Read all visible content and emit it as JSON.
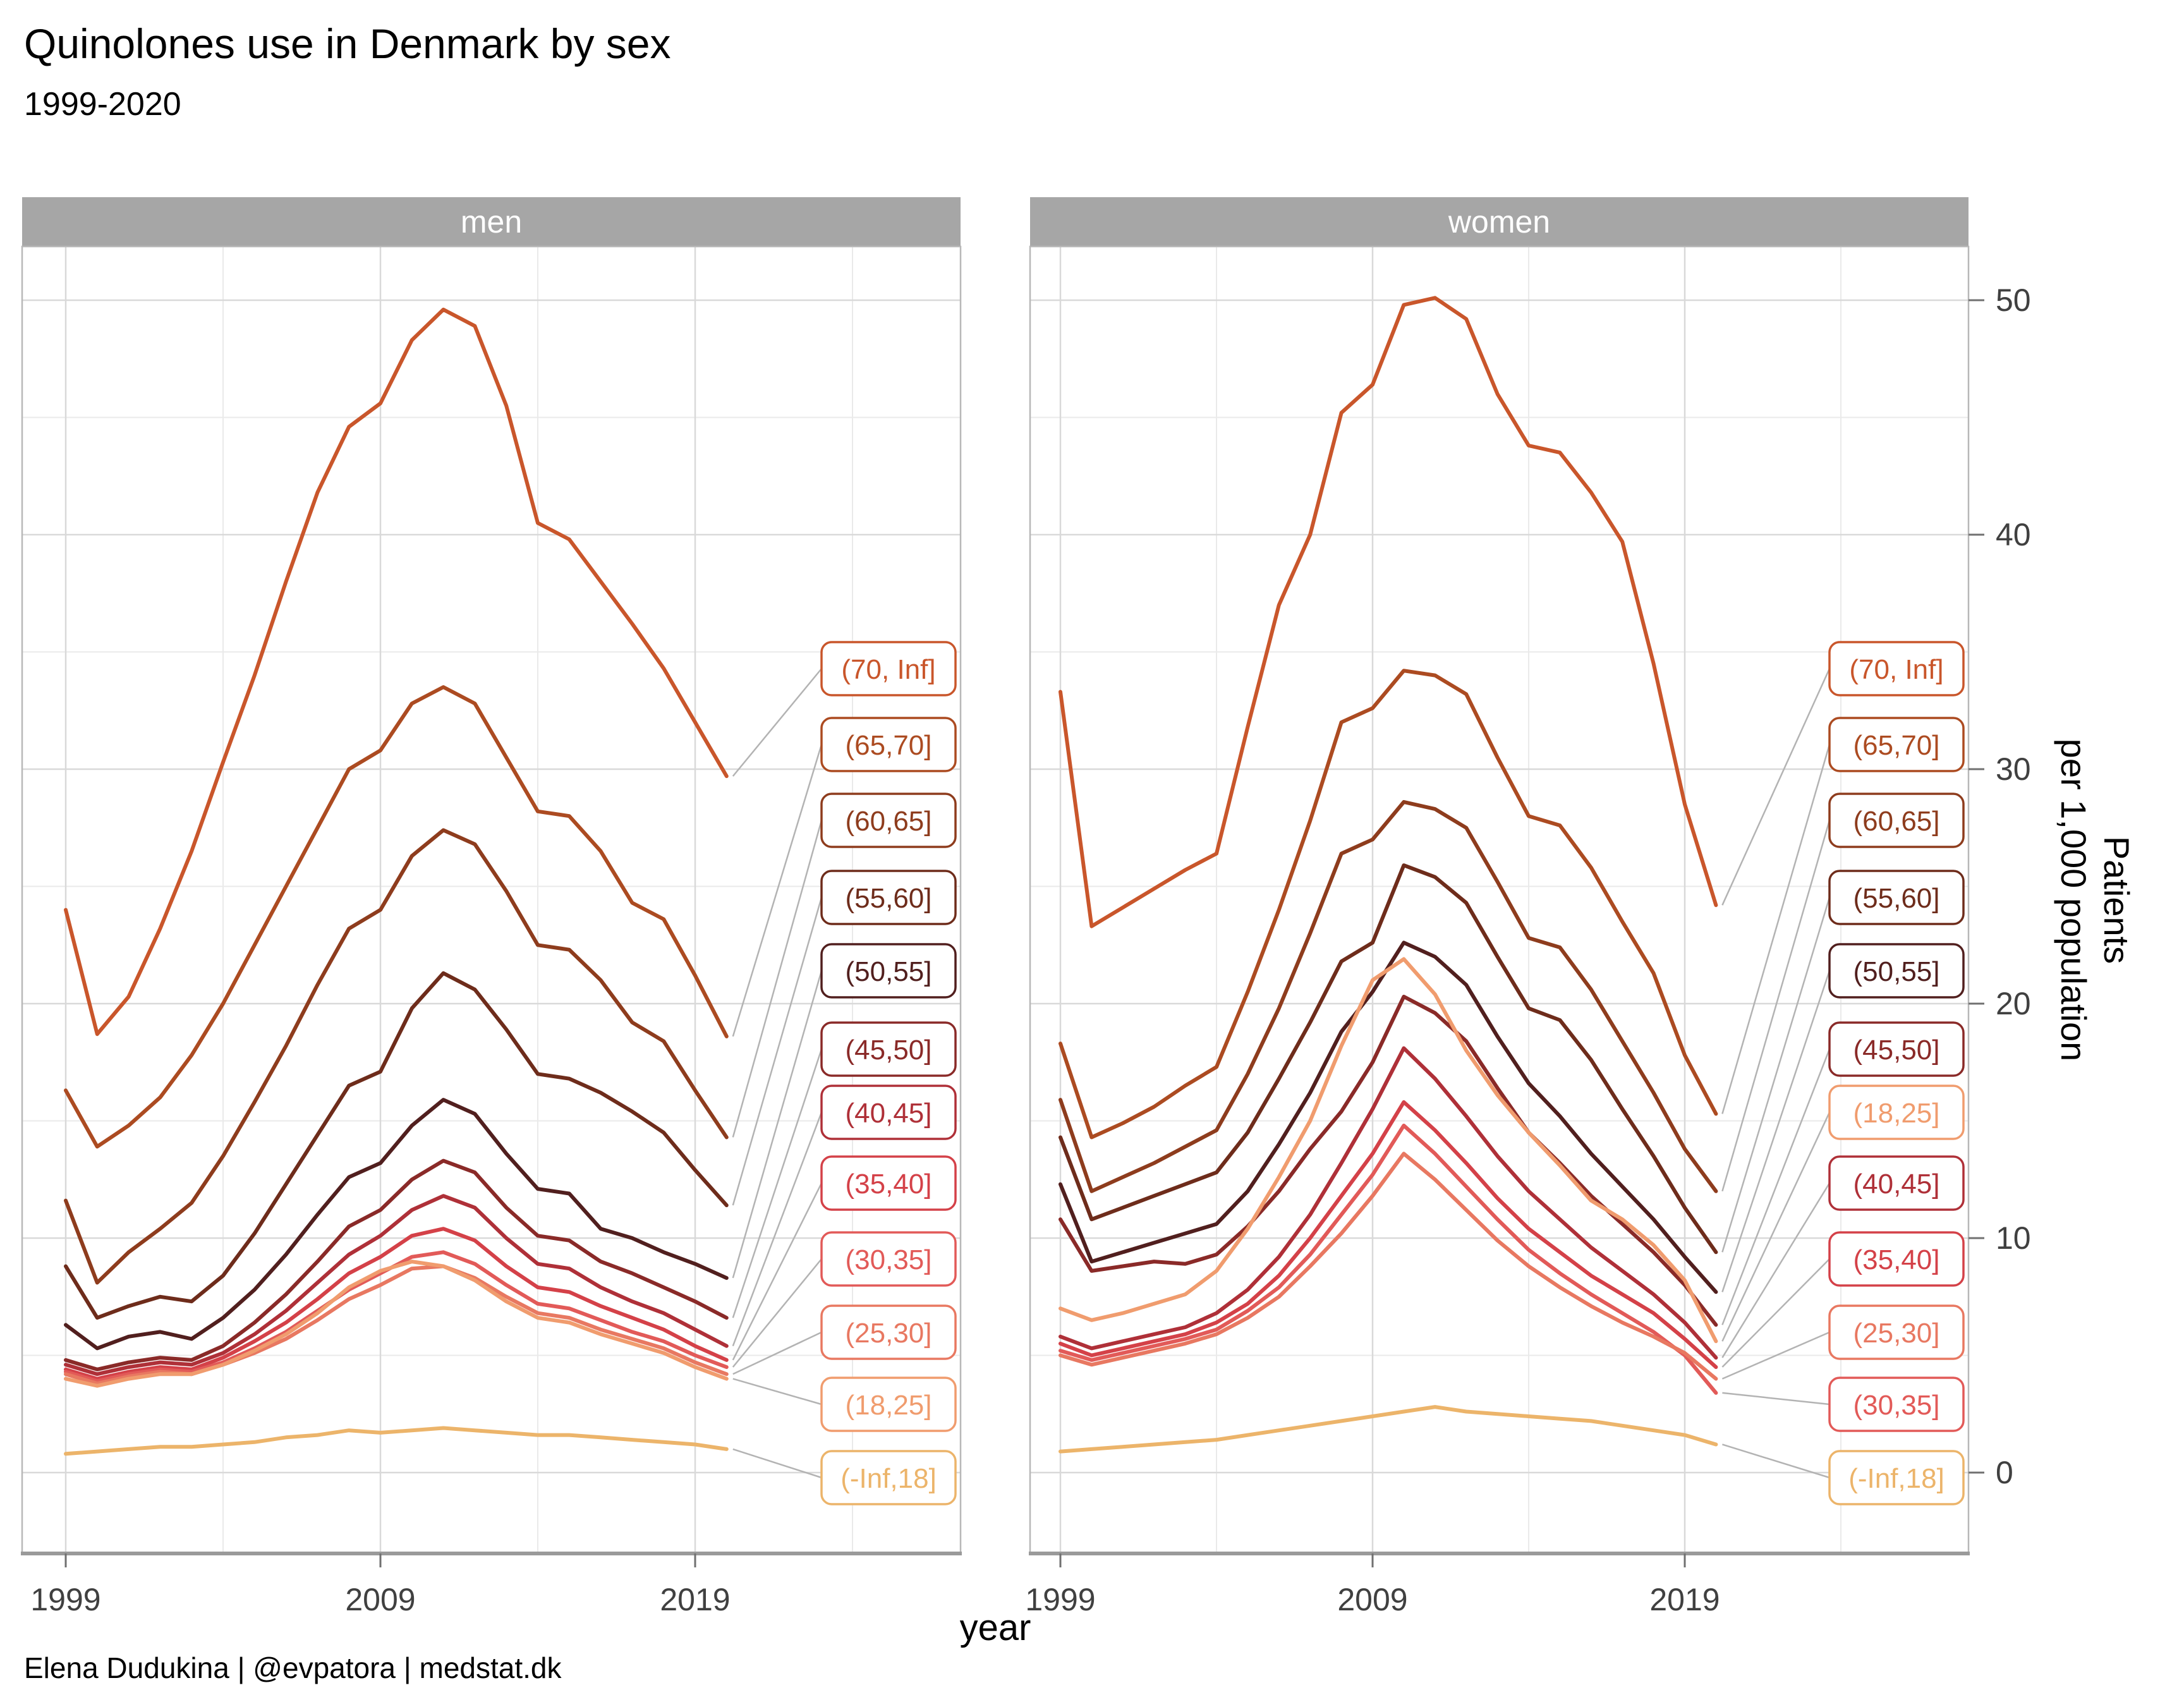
{
  "title": "Quinolones use in Denmark by sex",
  "subtitle": "1999-2020",
  "caption": "Elena Dudukina | @evpatora | medstat.dk",
  "axes": {
    "x_label": "year",
    "y_label_line1": "Patients",
    "y_label_line2": "per 1,000 population",
    "x_ticks": [
      1999,
      2009,
      2019
    ],
    "y_ticks": [
      0,
      10,
      20,
      30,
      40,
      50
    ]
  },
  "facet_labels": [
    "men",
    "women"
  ],
  "colors": {
    "strip_bg": "#a6a6a6",
    "strip_text": "#ffffff",
    "grid_major": "#d9d9d9",
    "grid_minor": "#eaeaea",
    "panel_border": "#b8b8b8",
    "axis_line": "#9a9a9a",
    "tick_text": "#404040",
    "leader": "#b3b3b3"
  },
  "series_colors": {
    "(70, Inf]": "#c9562b",
    "(65,70]": "#ac4b21",
    "(60,65]": "#8e3c1d",
    "(55,60]": "#6e2c1b",
    "(50,55]": "#511f1e",
    "(45,50]": "#8a2a28",
    "(40,45]": "#af3038",
    "(35,40]": "#d44148",
    "(30,35]": "#e25a58",
    "(25,30]": "#e87861",
    "(18,25]": "#f09c6e",
    "(-Inf,18]": "#ecb46a"
  },
  "label_order_men": [
    "(70, Inf]",
    "(65,70]",
    "(60,65]",
    "(55,60]",
    "(50,55]",
    "(45,50]",
    "(40,45]",
    "(35,40]",
    "(30,35]",
    "(25,30]",
    "(18,25]",
    "(-Inf,18]"
  ],
  "label_order_women": [
    "(70, Inf]",
    "(65,70]",
    "(60,65]",
    "(55,60]",
    "(50,55]",
    "(45,50]",
    "(18,25]",
    "(40,45]",
    "(35,40]",
    "(25,30]",
    "(30,35]",
    "(-Inf,18]"
  ],
  "chart_data": {
    "type": "line",
    "title": "Quinolones use in Denmark by sex",
    "subtitle": "1999-2020",
    "xlabel": "year",
    "ylabel": "Patients per 1,000 population",
    "x": [
      1999,
      2000,
      2001,
      2002,
      2003,
      2004,
      2005,
      2006,
      2007,
      2008,
      2009,
      2010,
      2011,
      2012,
      2013,
      2014,
      2015,
      2016,
      2017,
      2018,
      2019,
      2020
    ],
    "xlim": [
      1999,
      2020
    ],
    "ylim": [
      0,
      50
    ],
    "grid": true,
    "legend_position": "labeled-line-ends",
    "facets": [
      {
        "name": "men",
        "series": [
          {
            "name": "(70, Inf]",
            "values": [
              24.0,
              18.7,
              20.3,
              23.2,
              26.5,
              30.3,
              34.0,
              38.0,
              41.8,
              44.6,
              45.6,
              48.3,
              49.6,
              48.9,
              45.5,
              40.5,
              39.8,
              38.0,
              36.2,
              34.3,
              32.0,
              29.7
            ]
          },
          {
            "name": "(65,70]",
            "values": [
              16.3,
              13.9,
              14.8,
              16.0,
              17.8,
              20.0,
              22.5,
              25.0,
              27.5,
              30.0,
              30.8,
              32.8,
              33.5,
              32.8,
              30.5,
              28.2,
              28.0,
              26.5,
              24.3,
              23.6,
              21.2,
              18.6
            ]
          },
          {
            "name": "(60,65]",
            "values": [
              11.6,
              8.1,
              9.4,
              10.4,
              11.5,
              13.5,
              15.8,
              18.2,
              20.8,
              23.2,
              24.0,
              26.3,
              27.4,
              26.8,
              24.8,
              22.5,
              22.3,
              21.0,
              19.2,
              18.4,
              16.3,
              14.3
            ]
          },
          {
            "name": "(55,60]",
            "values": [
              8.8,
              6.6,
              7.1,
              7.5,
              7.3,
              8.4,
              10.2,
              12.3,
              14.4,
              16.5,
              17.1,
              19.8,
              21.3,
              20.6,
              18.9,
              17.0,
              16.8,
              16.2,
              15.4,
              14.5,
              12.9,
              11.4
            ]
          },
          {
            "name": "(50,55]",
            "values": [
              6.3,
              5.3,
              5.8,
              6.0,
              5.7,
              6.6,
              7.8,
              9.3,
              11.0,
              12.6,
              13.2,
              14.8,
              15.9,
              15.3,
              13.6,
              12.1,
              11.9,
              10.4,
              10.0,
              9.4,
              8.9,
              8.3
            ]
          },
          {
            "name": "(45,50]",
            "values": [
              4.8,
              4.4,
              4.7,
              4.9,
              4.8,
              5.4,
              6.4,
              7.6,
              9.0,
              10.5,
              11.2,
              12.5,
              13.3,
              12.8,
              11.3,
              10.1,
              9.9,
              9.0,
              8.5,
              7.9,
              7.3,
              6.6
            ]
          },
          {
            "name": "(40,45]",
            "values": [
              4.6,
              4.2,
              4.5,
              4.7,
              4.6,
              5.1,
              5.9,
              6.9,
              8.1,
              9.3,
              10.1,
              11.2,
              11.8,
              11.3,
              10.0,
              8.9,
              8.7,
              7.9,
              7.3,
              6.8,
              6.1,
              5.4
            ]
          },
          {
            "name": "(35,40]",
            "values": [
              4.4,
              4.0,
              4.3,
              4.5,
              4.4,
              4.9,
              5.6,
              6.4,
              7.4,
              8.5,
              9.2,
              10.1,
              10.4,
              9.9,
              8.8,
              7.9,
              7.7,
              7.1,
              6.6,
              6.1,
              5.4,
              4.8
            ]
          },
          {
            "name": "(30,35]",
            "values": [
              4.3,
              3.9,
              4.2,
              4.4,
              4.3,
              4.7,
              5.3,
              6.0,
              6.9,
              7.8,
              8.5,
              9.2,
              9.4,
              8.9,
              8.0,
              7.2,
              7.0,
              6.5,
              6.0,
              5.6,
              5.0,
              4.5
            ]
          },
          {
            "name": "(25,30]",
            "values": [
              4.2,
              3.8,
              4.1,
              4.3,
              4.2,
              4.6,
              5.1,
              5.7,
              6.5,
              7.4,
              8.0,
              8.7,
              8.8,
              8.3,
              7.5,
              6.8,
              6.6,
              6.1,
              5.7,
              5.3,
              4.7,
              4.2
            ]
          },
          {
            "name": "(18,25]",
            "values": [
              4.0,
              3.7,
              4.0,
              4.2,
              4.2,
              4.6,
              5.2,
              5.9,
              6.8,
              7.9,
              8.6,
              9.0,
              8.8,
              8.2,
              7.3,
              6.6,
              6.4,
              5.9,
              5.5,
              5.1,
              4.5,
              4.0
            ]
          },
          {
            "name": "(-Inf,18]",
            "values": [
              0.8,
              0.9,
              1.0,
              1.1,
              1.1,
              1.2,
              1.3,
              1.5,
              1.6,
              1.8,
              1.7,
              1.8,
              1.9,
              1.8,
              1.7,
              1.6,
              1.6,
              1.5,
              1.4,
              1.3,
              1.2,
              1.0
            ]
          }
        ]
      },
      {
        "name": "women",
        "series": [
          {
            "name": "(70, Inf]",
            "values": [
              33.3,
              23.3,
              24.1,
              24.9,
              25.7,
              26.4,
              31.8,
              37.0,
              40.0,
              45.2,
              46.4,
              49.8,
              50.1,
              49.2,
              46.0,
              43.8,
              43.5,
              41.8,
              39.7,
              34.5,
              28.5,
              24.2
            ]
          },
          {
            "name": "(65,70]",
            "values": [
              18.3,
              14.3,
              14.9,
              15.6,
              16.5,
              17.3,
              20.5,
              24.0,
              27.8,
              32.0,
              32.6,
              34.2,
              34.0,
              33.2,
              30.5,
              28.0,
              27.6,
              25.8,
              23.5,
              21.3,
              17.8,
              15.3
            ]
          },
          {
            "name": "(60,65]",
            "values": [
              15.9,
              12.0,
              12.6,
              13.2,
              13.9,
              14.6,
              17.0,
              19.8,
              23.0,
              26.4,
              27.0,
              28.6,
              28.3,
              27.5,
              25.2,
              22.8,
              22.4,
              20.6,
              18.4,
              16.2,
              13.8,
              12.0
            ]
          },
          {
            "name": "(55,60]",
            "values": [
              14.3,
              10.8,
              11.3,
              11.8,
              12.3,
              12.8,
              14.5,
              16.8,
              19.2,
              21.8,
              22.6,
              25.9,
              25.4,
              24.3,
              22.0,
              19.8,
              19.3,
              17.6,
              15.5,
              13.5,
              11.3,
              9.4
            ]
          },
          {
            "name": "(50,55]",
            "values": [
              12.3,
              9.0,
              9.4,
              9.8,
              10.2,
              10.6,
              12.0,
              14.0,
              16.2,
              18.8,
              20.5,
              22.6,
              22.0,
              20.8,
              18.6,
              16.6,
              15.2,
              13.6,
              12.2,
              10.8,
              9.2,
              7.7
            ]
          },
          {
            "name": "(45,50]",
            "values": [
              10.8,
              8.6,
              8.8,
              9.0,
              8.9,
              9.3,
              10.5,
              12.0,
              13.8,
              15.4,
              17.5,
              20.3,
              19.6,
              18.4,
              16.4,
              14.5,
              13.2,
              11.8,
              10.6,
              9.4,
              8.0,
              6.3
            ]
          },
          {
            "name": "(40,45]",
            "values": [
              5.8,
              5.3,
              5.6,
              5.9,
              6.2,
              6.8,
              7.8,
              9.2,
              11.0,
              13.2,
              15.5,
              18.1,
              16.8,
              15.2,
              13.5,
              12.0,
              10.8,
              9.6,
              8.6,
              7.6,
              6.4,
              4.9
            ]
          },
          {
            "name": "(35,40]",
            "values": [
              5.5,
              5.0,
              5.3,
              5.6,
              5.9,
              6.4,
              7.2,
              8.4,
              10.0,
              11.8,
              13.6,
              15.8,
              14.6,
              13.2,
              11.7,
              10.4,
              9.4,
              8.4,
              7.6,
              6.8,
              5.7,
              4.5
            ]
          },
          {
            "name": "(30,35]",
            "values": [
              5.2,
              4.8,
              5.1,
              5.4,
              5.7,
              6.1,
              6.9,
              7.9,
              9.3,
              11.0,
              12.7,
              14.8,
              13.6,
              12.2,
              10.8,
              9.5,
              8.5,
              7.6,
              6.8,
              6.0,
              5.0,
              3.4
            ]
          },
          {
            "name": "(25,30]",
            "values": [
              5.0,
              4.6,
              4.9,
              5.2,
              5.5,
              5.9,
              6.6,
              7.5,
              8.8,
              10.2,
              11.8,
              13.6,
              12.5,
              11.2,
              9.9,
              8.8,
              7.9,
              7.1,
              6.4,
              5.8,
              5.1,
              4.0
            ]
          },
          {
            "name": "(18,25]",
            "values": [
              7.0,
              6.5,
              6.8,
              7.2,
              7.6,
              8.6,
              10.4,
              12.6,
              15.0,
              18.2,
              21.0,
              21.9,
              20.4,
              18.0,
              16.1,
              14.5,
              13.1,
              11.6,
              10.8,
              9.7,
              8.2,
              5.6
            ]
          },
          {
            "name": "(-Inf,18]",
            "values": [
              0.9,
              1.0,
              1.1,
              1.2,
              1.3,
              1.4,
              1.6,
              1.8,
              2.0,
              2.2,
              2.4,
              2.6,
              2.8,
              2.6,
              2.5,
              2.4,
              2.3,
              2.2,
              2.0,
              1.8,
              1.6,
              1.2
            ]
          }
        ]
      }
    ]
  }
}
